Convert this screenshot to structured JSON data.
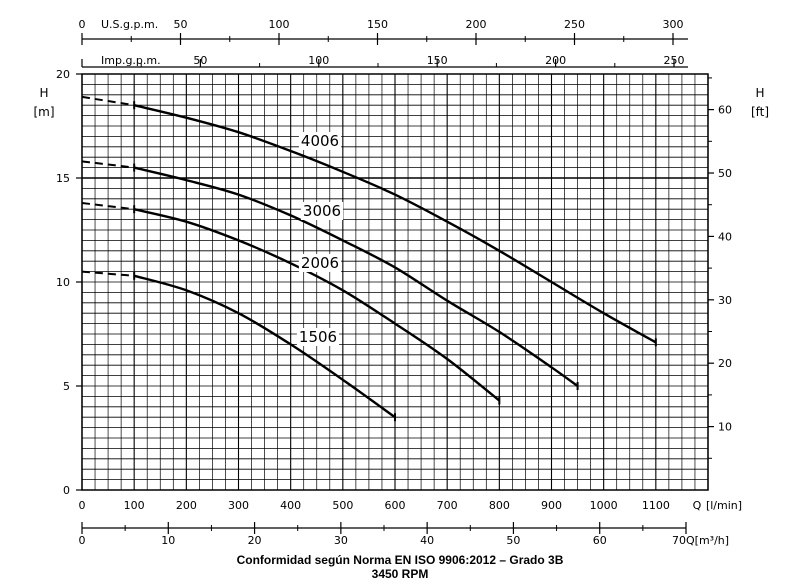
{
  "chart_data": {
    "type": "line",
    "x_primary": {
      "label": "Q",
      "unit": "[l/min]",
      "range": [
        0,
        1200
      ],
      "ticks": [
        0,
        100,
        200,
        300,
        400,
        500,
        600,
        700,
        800,
        900,
        1000,
        1100
      ]
    },
    "x_m3h": {
      "unit": "Q[m³/h]",
      "range": [
        0,
        70
      ],
      "ticks": [
        0,
        10,
        20,
        30,
        40,
        50,
        60,
        70
      ]
    },
    "x_usgpm": {
      "label": "U.S.g.p.m.",
      "range": [
        0,
        300
      ],
      "ticks": [
        0,
        50,
        100,
        150,
        200,
        250,
        300
      ]
    },
    "x_impgpm": {
      "label": "Imp.g.p.m.",
      "range": [
        0,
        250
      ],
      "ticks": [
        0,
        50,
        100,
        150,
        200,
        250
      ]
    },
    "y_left": {
      "label": "H",
      "unit": "[m]",
      "range": [
        0,
        20
      ],
      "ticks": [
        0,
        5,
        10,
        15,
        20
      ]
    },
    "y_right": {
      "label": "H",
      "unit": "[ft]",
      "range": [
        0,
        65.6
      ],
      "ticks": [
        10,
        20,
        30,
        40,
        50,
        60
      ]
    },
    "grid": true,
    "series": [
      {
        "name": "4006",
        "x": [
          0,
          100,
          200,
          300,
          400,
          500,
          600,
          700,
          800,
          900,
          1000,
          1100
        ],
        "y": [
          18.9,
          18.5,
          17.9,
          17.2,
          16.3,
          15.3,
          14.2,
          12.9,
          11.5,
          10.0,
          8.5,
          7.1
        ],
        "dashed_until": 100
      },
      {
        "name": "3006",
        "x": [
          0,
          100,
          200,
          300,
          400,
          500,
          600,
          700,
          800,
          900,
          950
        ],
        "y": [
          15.8,
          15.5,
          14.9,
          14.2,
          13.2,
          12.0,
          10.7,
          9.1,
          7.6,
          5.9,
          5.0
        ],
        "dashed_until": 100
      },
      {
        "name": "2006",
        "x": [
          0,
          100,
          200,
          300,
          400,
          500,
          600,
          700,
          800
        ],
        "y": [
          13.8,
          13.5,
          12.9,
          12.0,
          10.9,
          9.6,
          8.0,
          6.3,
          4.3
        ],
        "dashed_until": 100
      },
      {
        "name": "1506",
        "x": [
          0,
          100,
          200,
          300,
          400,
          500,
          600
        ],
        "y": [
          10.5,
          10.3,
          9.6,
          8.5,
          7.0,
          5.3,
          3.5
        ],
        "dashed_until": 100
      }
    ]
  },
  "caption": {
    "line1": "Conformidad según Norma EN ISO 9906:2012 – Grado 3B",
    "line2": "3450 RPM"
  }
}
